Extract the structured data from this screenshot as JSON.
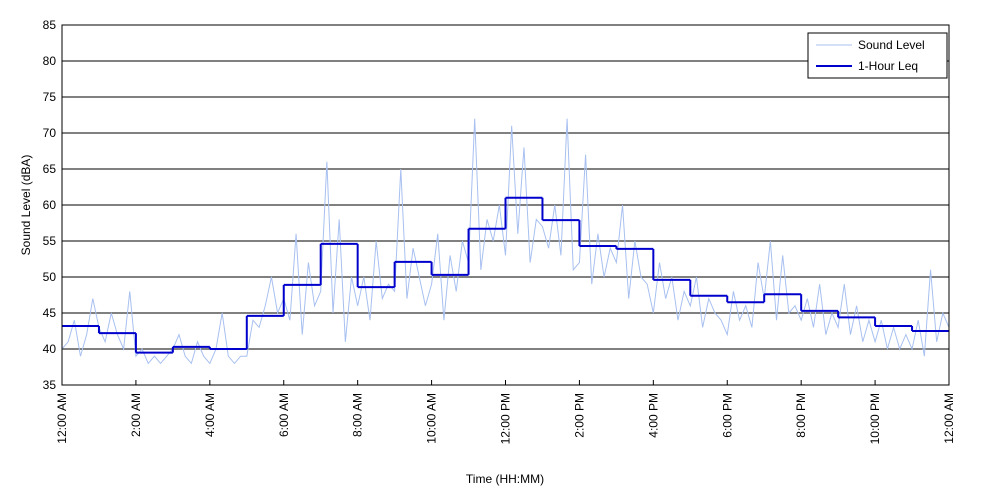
{
  "chart_data": {
    "type": "line",
    "xlabel": "Time (HH:MM)",
    "ylabel": "Sound Level (dBA)",
    "xlim": [
      0,
      1440
    ],
    "ylim": [
      35,
      85
    ],
    "xticks": [
      {
        "value": 0,
        "label": "12:00 AM"
      },
      {
        "value": 120,
        "label": "2:00 AM"
      },
      {
        "value": 240,
        "label": "4:00 AM"
      },
      {
        "value": 360,
        "label": "6:00 AM"
      },
      {
        "value": 480,
        "label": "8:00 AM"
      },
      {
        "value": 600,
        "label": "10:00 AM"
      },
      {
        "value": 720,
        "label": "12:00 PM"
      },
      {
        "value": 840,
        "label": "2:00 PM"
      },
      {
        "value": 960,
        "label": "4:00 PM"
      },
      {
        "value": 1080,
        "label": "6:00 PM"
      },
      {
        "value": 1200,
        "label": "8:00 PM"
      },
      {
        "value": 1320,
        "label": "10:00 PM"
      },
      {
        "value": 1440,
        "label": "12:00 AM"
      }
    ],
    "yticks": [
      35,
      40,
      45,
      50,
      55,
      60,
      65,
      70,
      75,
      80,
      85
    ],
    "grid": true,
    "legend": "upper right",
    "series": [
      {
        "name": "Sound Level",
        "color": "#a8c0f0",
        "step": false,
        "x": [
          0,
          10,
          20,
          30,
          40,
          50,
          60,
          70,
          80,
          90,
          100,
          110,
          120,
          130,
          140,
          150,
          160,
          170,
          180,
          190,
          200,
          210,
          220,
          230,
          240,
          250,
          260,
          270,
          280,
          290,
          300,
          310,
          320,
          330,
          340,
          350,
          360,
          370,
          380,
          390,
          400,
          410,
          420,
          430,
          440,
          450,
          460,
          470,
          480,
          490,
          500,
          510,
          520,
          530,
          540,
          550,
          560,
          570,
          580,
          590,
          600,
          610,
          620,
          630,
          640,
          650,
          660,
          670,
          680,
          690,
          700,
          710,
          720,
          730,
          740,
          750,
          760,
          770,
          780,
          790,
          800,
          810,
          820,
          830,
          840,
          850,
          860,
          870,
          880,
          890,
          900,
          910,
          920,
          930,
          940,
          950,
          960,
          970,
          980,
          990,
          1000,
          1010,
          1020,
          1030,
          1040,
          1050,
          1060,
          1070,
          1080,
          1090,
          1100,
          1110,
          1120,
          1130,
          1140,
          1150,
          1160,
          1170,
          1180,
          1190,
          1200,
          1210,
          1220,
          1230,
          1240,
          1250,
          1260,
          1270,
          1280,
          1290,
          1300,
          1310,
          1320,
          1330,
          1340,
          1350,
          1360,
          1370,
          1380,
          1390,
          1400,
          1410,
          1420,
          1430,
          1440
        ],
        "values": [
          40,
          41,
          44,
          39,
          42,
          47,
          43,
          41,
          45,
          42,
          40,
          48,
          39,
          40,
          38,
          39,
          38,
          39,
          40,
          42,
          39,
          38,
          41,
          39,
          38,
          40,
          45,
          39,
          38,
          39,
          39,
          44,
          43,
          46,
          50,
          45,
          47,
          44,
          56,
          42,
          52,
          46,
          48,
          66,
          45,
          58,
          41,
          50,
          46,
          50,
          44,
          55,
          47,
          49,
          48,
          65,
          47,
          54,
          50,
          46,
          49,
          56,
          44,
          53,
          48,
          55,
          52,
          72,
          51,
          58,
          55,
          60,
          53,
          71,
          56,
          68,
          52,
          58,
          57,
          54,
          60,
          53,
          72,
          51,
          52,
          67,
          49,
          56,
          50,
          54,
          52,
          60,
          47,
          55,
          50,
          49,
          45,
          52,
          47,
          50,
          44,
          48,
          46,
          50,
          43,
          47,
          45,
          44,
          42,
          48,
          44,
          46,
          43,
          52,
          47,
          55,
          44,
          53,
          45,
          46,
          44,
          47,
          43,
          49,
          42,
          45,
          43,
          49,
          42,
          46,
          41,
          44,
          41,
          44,
          40,
          43,
          40,
          42,
          40,
          44,
          39,
          51,
          41,
          45,
          43
        ]
      },
      {
        "name": "1-Hour Leq",
        "color": "#0000cc",
        "step": true,
        "x": [
          0,
          60,
          120,
          180,
          240,
          300,
          360,
          420,
          480,
          540,
          600,
          660,
          720,
          780,
          840,
          900,
          960,
          1020,
          1080,
          1140,
          1200,
          1260,
          1320,
          1380
        ],
        "values": [
          43.2,
          42.2,
          39.5,
          40.3,
          40.0,
          44.6,
          48.9,
          54.6,
          48.6,
          52.1,
          50.3,
          56.7,
          61.0,
          57.9,
          54.3,
          53.9,
          49.6,
          47.4,
          46.5,
          47.6,
          45.3,
          44.4,
          43.2,
          42.5
        ]
      }
    ]
  }
}
